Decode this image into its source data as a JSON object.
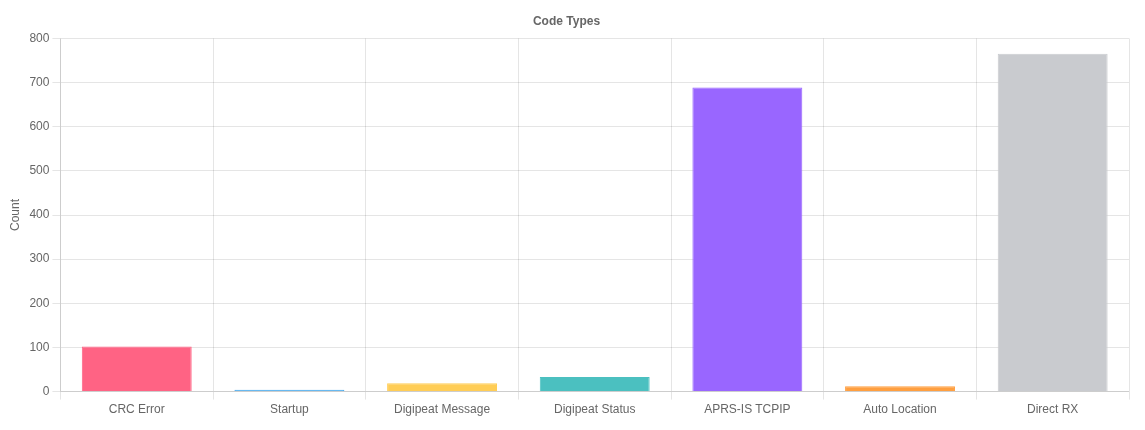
{
  "chart_data": {
    "type": "bar",
    "title": "Code Types",
    "ylabel": "Count",
    "categories": [
      "CRC Error",
      "Startup",
      "Digipeat Message",
      "Digipeat Status",
      "APRS-IS TCPIP",
      "Auto Location",
      "Direct RX"
    ],
    "values": [
      102,
      4,
      19,
      33,
      689,
      12,
      765
    ],
    "colors": [
      "#ff6384",
      "#36a2eb",
      "#ffcd56",
      "#4bc0c0",
      "#9966ff",
      "#ff9f40",
      "#c9cbcf"
    ],
    "ylim": [
      0,
      800
    ],
    "yticks": [
      0,
      100,
      200,
      300,
      400,
      500,
      600,
      700,
      800
    ],
    "grid": true,
    "legend": false
  }
}
